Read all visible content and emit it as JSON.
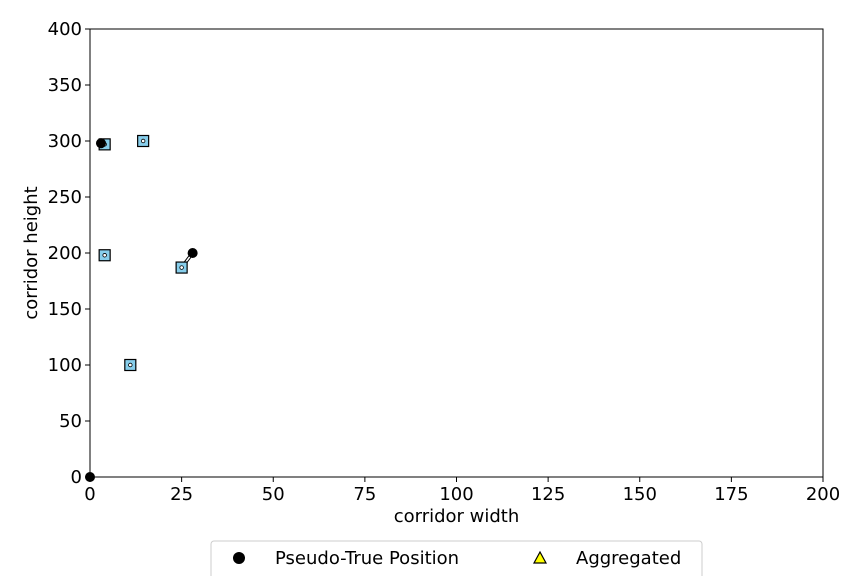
{
  "chart_data": {
    "type": "scatter",
    "title": "",
    "xlabel": "corridor width",
    "ylabel": "corridor height",
    "xlim": [
      0,
      200
    ],
    "ylim": [
      0,
      400
    ],
    "xticks": [
      0,
      25,
      50,
      75,
      100,
      125,
      150,
      175,
      200
    ],
    "yticks": [
      0,
      50,
      100,
      150,
      200,
      250,
      300,
      350,
      400
    ],
    "grid": false,
    "legend_position": "bottom-center",
    "series": [
      {
        "name": "Pseudo-True Position",
        "marker": "circle",
        "color": "#000000",
        "points": [
          {
            "x": 0,
            "y": 0
          },
          {
            "x": 3,
            "y": 298
          },
          {
            "x": 28,
            "y": 200
          }
        ]
      },
      {
        "name": "Aggregated",
        "marker": "triangle",
        "color": "#ffff00",
        "points": []
      },
      {
        "marker": "square",
        "color": "#87ceeb",
        "points": [
          {
            "x": 4,
            "y": 297
          },
          {
            "x": 14.5,
            "y": 300
          },
          {
            "x": 4,
            "y": 198
          },
          {
            "x": 25,
            "y": 187
          },
          {
            "x": 11,
            "y": 100
          }
        ]
      }
    ],
    "links": [
      {
        "from": {
          "x": 28,
          "y": 200
        },
        "to": {
          "x": 25,
          "y": 187
        }
      },
      {
        "from": {
          "x": 3,
          "y": 298
        },
        "to": {
          "x": 4,
          "y": 297
        }
      }
    ]
  }
}
